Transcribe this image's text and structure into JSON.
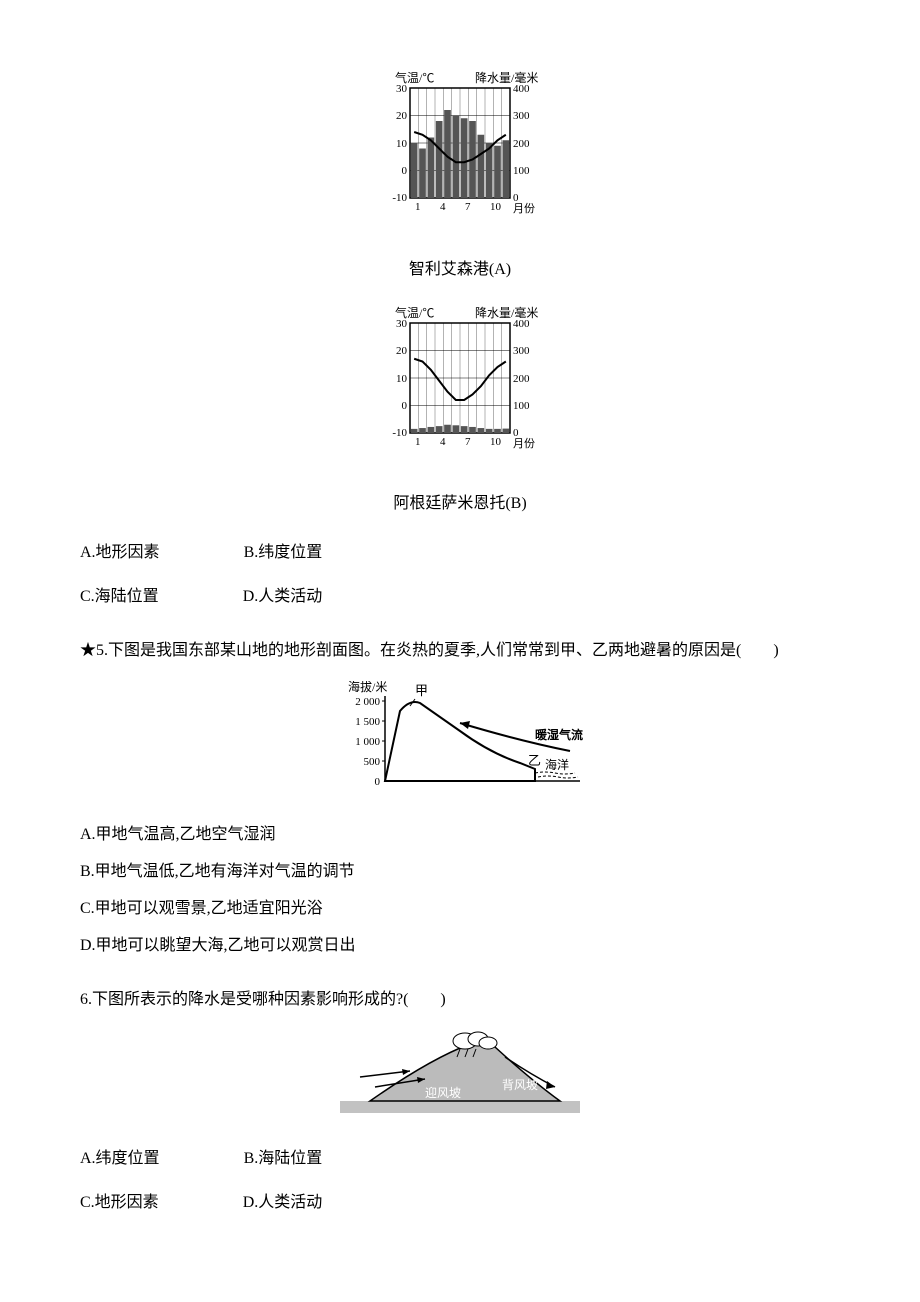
{
  "chartA": {
    "title_left": "气温/℃",
    "title_right": "降水量/毫米",
    "y_left_ticks": [
      "30",
      "20",
      "10",
      "0",
      "-10"
    ],
    "y_right_ticks": [
      "400",
      "300",
      "200",
      "100",
      "0"
    ],
    "x_ticks": [
      "1",
      "4",
      "7",
      "10"
    ],
    "x_label": "月份",
    "caption": "智利艾森港(A)",
    "temp_values": [
      14,
      13,
      11,
      8,
      5,
      3,
      3,
      4,
      6,
      8,
      11,
      13
    ],
    "precip_values": [
      200,
      180,
      220,
      280,
      320,
      300,
      290,
      280,
      230,
      200,
      190,
      210
    ],
    "bar_color": "#555555",
    "line_color": "#000000",
    "bg_color": "#ffffff",
    "grid_color": "#000000"
  },
  "chartB": {
    "title_left": "气温/℃",
    "title_right": "降水量/毫米",
    "y_left_ticks": [
      "30",
      "20",
      "10",
      "0",
      "-10"
    ],
    "y_right_ticks": [
      "400",
      "300",
      "200",
      "100",
      "0"
    ],
    "x_ticks": [
      "1",
      "4",
      "7",
      "10"
    ],
    "x_label": "月份",
    "caption": "阿根廷萨米恩托(B)",
    "temp_values": [
      17,
      16,
      13,
      9,
      5,
      2,
      2,
      4,
      7,
      11,
      14,
      16
    ],
    "precip_values": [
      15,
      18,
      22,
      25,
      30,
      28,
      25,
      22,
      18,
      15,
      15,
      16
    ],
    "bar_color": "#555555",
    "line_color": "#000000",
    "bg_color": "#ffffff",
    "grid_color": "#000000"
  },
  "q4": {
    "optA": "A.地形因素",
    "optB": "B.纬度位置",
    "optC": "C.海陆位置",
    "optD": "D.人类活动"
  },
  "q5": {
    "stem": "★5.下图是我国东部某山地的地形剖面图。在炎热的夏季,人们常常到甲、乙两地避暑的原因是(　　)",
    "optA": "A.甲地气温高,乙地空气湿润",
    "optB": "B.甲地气温低,乙地有海洋对气温的调节",
    "optC": "C.甲地可以观雪景,乙地适宜阳光浴",
    "optD": "D.甲地可以眺望大海,乙地可以观赏日出",
    "diagram": {
      "y_label": "海拔/米",
      "y_ticks": [
        "2 000",
        "1 500",
        "1 000",
        "500",
        "0"
      ],
      "label_jia": "甲",
      "label_yi": "乙",
      "label_sea": "海洋",
      "label_flow": "暖湿气流",
      "line_color": "#000000",
      "sea_color": "#ffffff"
    }
  },
  "q6": {
    "stem": "6.下图所表示的降水是受哪种因素影响形成的?(　　)",
    "optA": "A.纬度位置",
    "optB": "B.海陆位置",
    "optC": "C.地形因素",
    "optD": "D.人类活动",
    "diagram": {
      "label_wind": "迎风坡",
      "label_lee": "背风坡",
      "mountain_fill": "#888888",
      "cloud_stroke": "#000000",
      "arrow_color": "#000000"
    }
  }
}
